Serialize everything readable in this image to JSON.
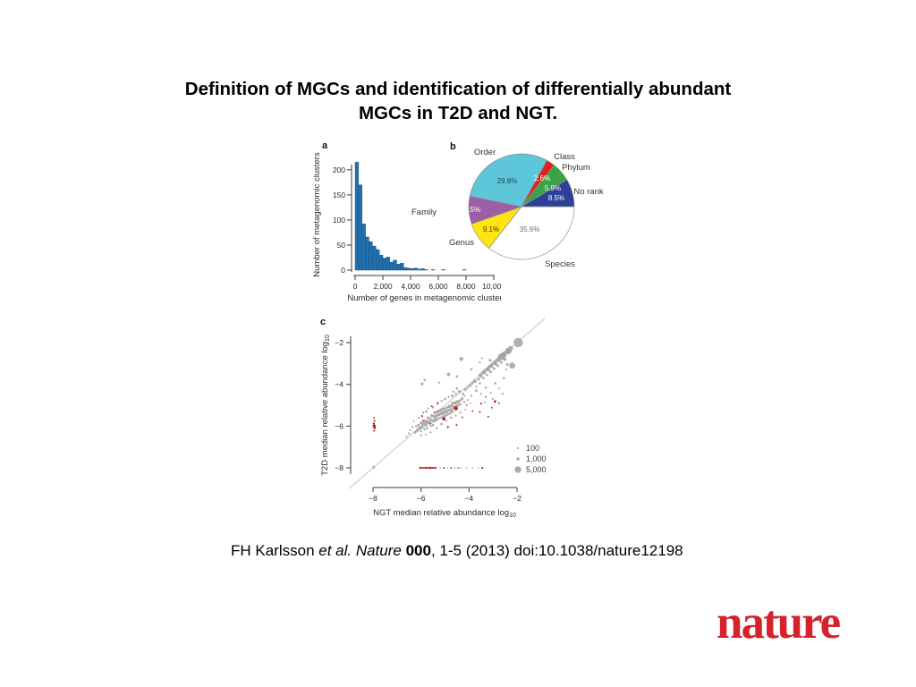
{
  "title": {
    "line1": "Definition of MGCs and identification of differentially abundant",
    "line2": "MGCs in T2D and NGT."
  },
  "figure": {
    "panel_a_label": "a",
    "panel_b_label": "b",
    "panel_c_label": "c"
  },
  "citation": {
    "authors": "FH Karlsson ",
    "etal_journal": "et al. Nature ",
    "volume": "000",
    "rest": ", 1-5 (2013) doi:10.1038/nature12198"
  },
  "logo": {
    "text": "nature",
    "color": "#d5232e"
  },
  "chart_data": [
    {
      "type": "bar",
      "panel": "a",
      "xlabel": "Number of genes in metagenomic cluster",
      "ylabel": "Number of metagenomic clusters",
      "bin_start": 0,
      "bin_width": 250,
      "values": [
        215,
        170,
        92,
        66,
        57,
        48,
        41,
        30,
        24,
        26,
        16,
        20,
        12,
        14,
        5,
        4,
        3,
        4,
        2,
        3,
        1,
        0,
        1,
        0,
        0,
        1,
        0,
        0,
        0,
        0,
        0,
        1,
        0,
        0,
        0,
        0,
        0,
        0,
        0,
        0
      ],
      "xlim": [
        0,
        10000
      ],
      "ylim": [
        0,
        240
      ],
      "xticks": [
        0,
        2000,
        4000,
        6000,
        8000,
        10000
      ],
      "xtick_labels": [
        "0",
        "2,000",
        "4,000",
        "6,000",
        "8,000",
        "10,000"
      ],
      "yticks": [
        0,
        50,
        100,
        150,
        200
      ],
      "ytick_labels": [
        "0",
        "50",
        "100",
        "150",
        "200"
      ],
      "bar_color": "#2170ad",
      "bar_edge": "#0f4c7f"
    },
    {
      "type": "pie",
      "panel": "b",
      "start_angle_deg": 0,
      "clockwise": true,
      "slices": [
        {
          "label": "Species",
          "pct": 35.6,
          "pct_label": "35.6%",
          "color": "#ffffff",
          "pct_label_color": "#6e6e6e"
        },
        {
          "label": "Genus",
          "pct": 9.1,
          "pct_label": "9.1%",
          "color": "#ffe412",
          "pct_label_color": "#3c3c14"
        },
        {
          "label": "Family",
          "pct": 8.5,
          "pct_label": "8.5%",
          "color": "#9c5fa5",
          "pct_label_color": "#ffffff"
        },
        {
          "label": "Order",
          "pct": 29.8,
          "pct_label": "29.8%",
          "color": "#5ec6d9",
          "pct_label_color": "#1f4751"
        },
        {
          "label": "Class",
          "pct": 2.6,
          "pct_label": "2.6%",
          "color": "#e3221b",
          "pct_label_color": "#ffffff"
        },
        {
          "label": "Phylum",
          "pct": 5.9,
          "pct_label": "5.9%",
          "color": "#39a345",
          "pct_label_color": "#ffffff"
        },
        {
          "label": "No rank",
          "pct": 8.5,
          "pct_label": "8.5%",
          "color": "#2e3f97",
          "pct_label_color": "#ffffff"
        }
      ],
      "outline_color": "#8f8f8f"
    },
    {
      "type": "scatter",
      "panel": "c",
      "xlabel": "NGT median relative abundance log",
      "xlabel_sub": "10",
      "ylabel": "T2D median relative abundance log",
      "ylabel_sub": "10",
      "xlim": [
        -9,
        -0.8
      ],
      "ylim": [
        -9,
        -1.3
      ],
      "xticks": [
        -8,
        -6,
        -4,
        -2
      ],
      "xtick_labels": [
        "−8",
        "−6",
        "−4",
        "−2"
      ],
      "yticks": [
        -2,
        -4,
        -6,
        -8
      ],
      "ytick_labels": [
        "−2",
        "−4",
        "−6",
        "−8"
      ],
      "diagonal": true,
      "gray_color": "#a9a9a9",
      "red_color": "#bf2620",
      "legend": {
        "labels": [
          "100",
          "1,000",
          "5,000"
        ],
        "radii": [
          0.9,
          1.5,
          3.4
        ]
      },
      "gray_points": [
        [
          -6.35,
          -6.05,
          1.0
        ],
        [
          -6.25,
          -6.3,
          1.4
        ],
        [
          -6.2,
          -6.0,
          1.1
        ],
        [
          -6.15,
          -6.2,
          1.6
        ],
        [
          -6.1,
          -5.95,
          1.2
        ],
        [
          -6.05,
          -6.1,
          1.8
        ],
        [
          -6.0,
          -5.85,
          1.3
        ],
        [
          -6.0,
          -6.25,
          1.0
        ],
        [
          -5.95,
          -6.05,
          1.5
        ],
        [
          -5.9,
          -5.9,
          1.9
        ],
        [
          -5.85,
          -6.15,
          1.1
        ],
        [
          -5.85,
          -5.75,
          1.3
        ],
        [
          -5.8,
          -5.95,
          1.6
        ],
        [
          -5.75,
          -5.8,
          2.0
        ],
        [
          -5.75,
          -6.1,
          1.2
        ],
        [
          -5.7,
          -5.6,
          1.4
        ],
        [
          -5.65,
          -5.85,
          1.7
        ],
        [
          -5.6,
          -5.7,
          1.3
        ],
        [
          -5.6,
          -6.0,
          1.0
        ],
        [
          -5.55,
          -5.5,
          1.5
        ],
        [
          -5.5,
          -5.75,
          1.8
        ],
        [
          -5.5,
          -5.95,
          1.2
        ],
        [
          -5.45,
          -5.55,
          1.4
        ],
        [
          -5.4,
          -5.7,
          2.1
        ],
        [
          -5.4,
          -5.35,
          1.1
        ],
        [
          -5.35,
          -5.5,
          1.6
        ],
        [
          -5.3,
          -5.65,
          1.3
        ],
        [
          -5.3,
          -5.3,
          1.8
        ],
        [
          -5.25,
          -5.45,
          1.5
        ],
        [
          -5.2,
          -5.6,
          1.2
        ],
        [
          -5.2,
          -5.25,
          1.4
        ],
        [
          -5.15,
          -5.4,
          1.9
        ],
        [
          -5.1,
          -5.2,
          1.5
        ],
        [
          -5.1,
          -5.55,
          1.1
        ],
        [
          -5.05,
          -5.35,
          1.7
        ],
        [
          -5.0,
          -5.15,
          1.3
        ],
        [
          -5.0,
          -5.5,
          1.5
        ],
        [
          -4.95,
          -5.3,
          2.0
        ],
        [
          -4.9,
          -5.1,
          1.4
        ],
        [
          -4.9,
          -5.45,
          1.2
        ],
        [
          -4.85,
          -5.25,
          1.6
        ],
        [
          -4.8,
          -5.05,
          1.8
        ],
        [
          -4.8,
          -5.4,
          1.3
        ],
        [
          -4.75,
          -5.2,
          1.5
        ],
        [
          -4.7,
          -5.0,
          1.2
        ],
        [
          -4.7,
          -5.3,
          1.7
        ],
        [
          -4.65,
          -5.1,
          1.4
        ],
        [
          -4.6,
          -4.9,
          1.6
        ],
        [
          -4.55,
          -5.05,
          1.3
        ],
        [
          -4.5,
          -4.85,
          1.9
        ],
        [
          -4.45,
          -5.0,
          1.5
        ],
        [
          -4.4,
          -4.8,
          1.3
        ],
        [
          -4.35,
          -4.95,
          1.1
        ],
        [
          -4.3,
          -4.7,
          1.6
        ],
        [
          -6.1,
          -5.6,
          0.9
        ],
        [
          -5.9,
          -5.35,
          1.0
        ],
        [
          -5.7,
          -5.15,
          0.9
        ],
        [
          -5.5,
          -5.1,
          1.1
        ],
        [
          -5.3,
          -4.95,
          1.0
        ],
        [
          -5.15,
          -4.8,
          0.9
        ],
        [
          -5.0,
          -4.7,
          1.2
        ],
        [
          -4.85,
          -4.6,
          1.0
        ],
        [
          -4.7,
          -4.55,
          1.3
        ],
        [
          -4.55,
          -4.45,
          1.1
        ],
        [
          -4.4,
          -4.35,
          1.5
        ],
        [
          -5.6,
          -6.3,
          0.9
        ],
        [
          -5.35,
          -6.1,
          1.0
        ],
        [
          -5.15,
          -5.9,
          1.2
        ],
        [
          -4.95,
          -5.75,
          0.9
        ],
        [
          -4.75,
          -5.6,
          1.1
        ],
        [
          -4.55,
          -5.5,
          0.9
        ],
        [
          -4.35,
          -5.35,
          1.0
        ],
        [
          -4.15,
          -5.2,
          0.8
        ],
        [
          -4.2,
          -4.55,
          1.0
        ],
        [
          -4.05,
          -4.75,
          0.9
        ],
        [
          -4.1,
          -5.0,
          1.1
        ],
        [
          -3.95,
          -4.9,
          0.8
        ],
        [
          -6.3,
          -5.75,
          0.8
        ],
        [
          -6.45,
          -6.2,
          0.9
        ],
        [
          -4.25,
          -4.45,
          1.2
        ],
        [
          -4.15,
          -4.25,
          1.4
        ],
        [
          -4.05,
          -4.15,
          1.1
        ],
        [
          -3.95,
          -4.05,
          1.6
        ],
        [
          -3.85,
          -3.95,
          1.2
        ],
        [
          -3.75,
          -3.85,
          1.8
        ],
        [
          -3.7,
          -4.1,
          1.0
        ],
        [
          -3.6,
          -3.75,
          1.4
        ],
        [
          -3.55,
          -3.95,
          1.1
        ],
        [
          -3.5,
          -3.6,
          1.7
        ],
        [
          -3.4,
          -3.7,
          1.2
        ],
        [
          -3.35,
          -3.45,
          1.5
        ],
        [
          -3.25,
          -3.55,
          1.1
        ],
        [
          -3.2,
          -3.3,
          1.8
        ],
        [
          -3.1,
          -3.4,
          1.3
        ],
        [
          -3.05,
          -3.15,
          1.6
        ],
        [
          -2.95,
          -3.25,
          1.2
        ],
        [
          -2.9,
          -3.0,
          1.9
        ],
        [
          -2.8,
          -3.1,
          1.4
        ],
        [
          -2.75,
          -2.85,
          1.7
        ],
        [
          -2.65,
          -2.95,
          1.3
        ],
        [
          -2.6,
          -2.7,
          2.0
        ],
        [
          -2.5,
          -2.8,
          1.5
        ],
        [
          -3.55,
          -3.55,
          1.3
        ],
        [
          -3.45,
          -3.45,
          1.5
        ],
        [
          -3.35,
          -3.35,
          1.7
        ],
        [
          -3.25,
          -3.25,
          1.4
        ],
        [
          -3.15,
          -3.15,
          1.8
        ],
        [
          -3.05,
          -3.05,
          1.5
        ],
        [
          -2.95,
          -2.95,
          1.9
        ],
        [
          -2.85,
          -2.85,
          1.6
        ],
        [
          -2.75,
          -2.75,
          2.1
        ],
        [
          -2.65,
          -2.65,
          1.8
        ],
        [
          -2.55,
          -2.55,
          2.2
        ],
        [
          -2.45,
          -2.45,
          1.9
        ],
        [
          -2.4,
          -2.38,
          2.4
        ],
        [
          -2.33,
          -2.33,
          2.0
        ],
        [
          -2.27,
          -2.28,
          2.6
        ],
        [
          -2.3,
          -2.42,
          1.7
        ],
        [
          -2.5,
          -2.62,
          1.6
        ],
        [
          -2.6,
          -2.52,
          1.4
        ],
        [
          -2.7,
          -2.62,
          1.9
        ],
        [
          -2.36,
          -2.5,
          1.5
        ],
        [
          -1.95,
          -2.0,
          5.0
        ],
        [
          -2.2,
          -3.1,
          3.2
        ],
        [
          -2.62,
          -2.72,
          2.6
        ],
        [
          -4.32,
          -2.78,
          2.0
        ],
        [
          -3.12,
          -2.85,
          1.4
        ],
        [
          -3.55,
          -2.95,
          1.0
        ],
        [
          -4.85,
          -3.52,
          1.7
        ],
        [
          -4.5,
          -3.62,
          1.2
        ],
        [
          -5.25,
          -3.92,
          1.0
        ],
        [
          -5.95,
          -3.98,
          1.4
        ],
        [
          -5.85,
          -3.8,
          1.1
        ],
        [
          -3.9,
          -3.28,
          1.1
        ],
        [
          -3.45,
          -2.75,
          0.9
        ],
        [
          -3.9,
          -4.55,
          1.0
        ],
        [
          -3.7,
          -4.3,
          1.2
        ],
        [
          -3.5,
          -4.45,
          0.9
        ],
        [
          -3.3,
          -4.15,
          1.1
        ],
        [
          -3.1,
          -4.4,
          0.9
        ],
        [
          -2.9,
          -3.95,
          1.2
        ],
        [
          -2.75,
          -4.2,
          0.8
        ],
        [
          -2.6,
          -4.45,
          1.0
        ],
        [
          -3.0,
          -4.7,
          0.9
        ],
        [
          -3.35,
          -4.85,
          0.8
        ],
        [
          -2.55,
          -3.7,
          1.1
        ],
        [
          -2.45,
          -3.3,
          0.9
        ],
        [
          -2.4,
          -3.05,
          1.3
        ],
        [
          -6.0,
          -6.45,
          0.9
        ],
        [
          -5.8,
          -6.4,
          0.8
        ],
        [
          -6.5,
          -6.35,
          1.0
        ],
        [
          -6.6,
          -6.5,
          0.8
        ],
        [
          -4.5,
          -4.2,
          1.2
        ],
        [
          -4.65,
          -4.35,
          1.0
        ],
        [
          -7.97,
          -7.97,
          1.3
        ],
        [
          -5.2,
          -8.0,
          0.7
        ],
        [
          -4.9,
          -8.0,
          0.6
        ],
        [
          -4.6,
          -8.0,
          0.7
        ],
        [
          -4.35,
          -8.0,
          0.6
        ],
        [
          -4.1,
          -8.0,
          0.6
        ],
        [
          -3.85,
          -8.0,
          0.6
        ],
        [
          -3.6,
          -8.0,
          0.6
        ]
      ],
      "red_points": [
        [
          -7.96,
          -5.6,
          0.8
        ],
        [
          -7.94,
          -5.75,
          0.9
        ],
        [
          -7.97,
          -5.88,
          1.0
        ],
        [
          -7.95,
          -6.0,
          1.7
        ],
        [
          -7.93,
          -6.1,
          1.1
        ],
        [
          -7.96,
          -6.22,
          0.8
        ],
        [
          -5.95,
          -5.52,
          0.9
        ],
        [
          -5.78,
          -5.3,
          0.8
        ],
        [
          -5.92,
          -5.75,
          0.8
        ],
        [
          -5.6,
          -5.88,
          0.8
        ],
        [
          -5.55,
          -5.05,
          0.8
        ],
        [
          -5.3,
          -4.88,
          0.8
        ],
        [
          -5.45,
          -5.35,
          0.7
        ],
        [
          -5.05,
          -5.65,
          1.8
        ],
        [
          -4.88,
          -6.05,
          1.0
        ],
        [
          -4.55,
          -5.15,
          2.2
        ],
        [
          -4.52,
          -5.95,
          0.9
        ],
        [
          -4.28,
          -5.58,
          0.8
        ],
        [
          -4.7,
          -4.88,
          0.7
        ],
        [
          -4.2,
          -4.85,
          0.7
        ],
        [
          -3.85,
          -5.28,
          0.8
        ],
        [
          -3.55,
          -5.32,
          0.9
        ],
        [
          -3.5,
          -4.92,
          0.9
        ],
        [
          -3.2,
          -5.55,
          0.8
        ],
        [
          -3.05,
          -5.12,
          0.8
        ],
        [
          -2.92,
          -4.82,
          1.3
        ],
        [
          -3.3,
          -4.6,
          0.7
        ],
        [
          -2.75,
          -4.9,
          0.8
        ],
        [
          -6.05,
          -8,
          0.9
        ],
        [
          -5.98,
          -8,
          1.0
        ],
        [
          -5.9,
          -8,
          0.9
        ],
        [
          -5.82,
          -8,
          1.1
        ],
        [
          -5.75,
          -8,
          0.9
        ],
        [
          -5.68,
          -8,
          1.0
        ],
        [
          -5.6,
          -8,
          1.2
        ],
        [
          -5.52,
          -8,
          0.9
        ],
        [
          -5.45,
          -8,
          1.0
        ],
        [
          -5.38,
          -8,
          0.8
        ],
        [
          -5.05,
          -8,
          0.8
        ],
        [
          -4.75,
          -8,
          0.7
        ],
        [
          -4.45,
          -8,
          0.7
        ],
        [
          -3.45,
          -8,
          1.0
        ]
      ]
    }
  ]
}
